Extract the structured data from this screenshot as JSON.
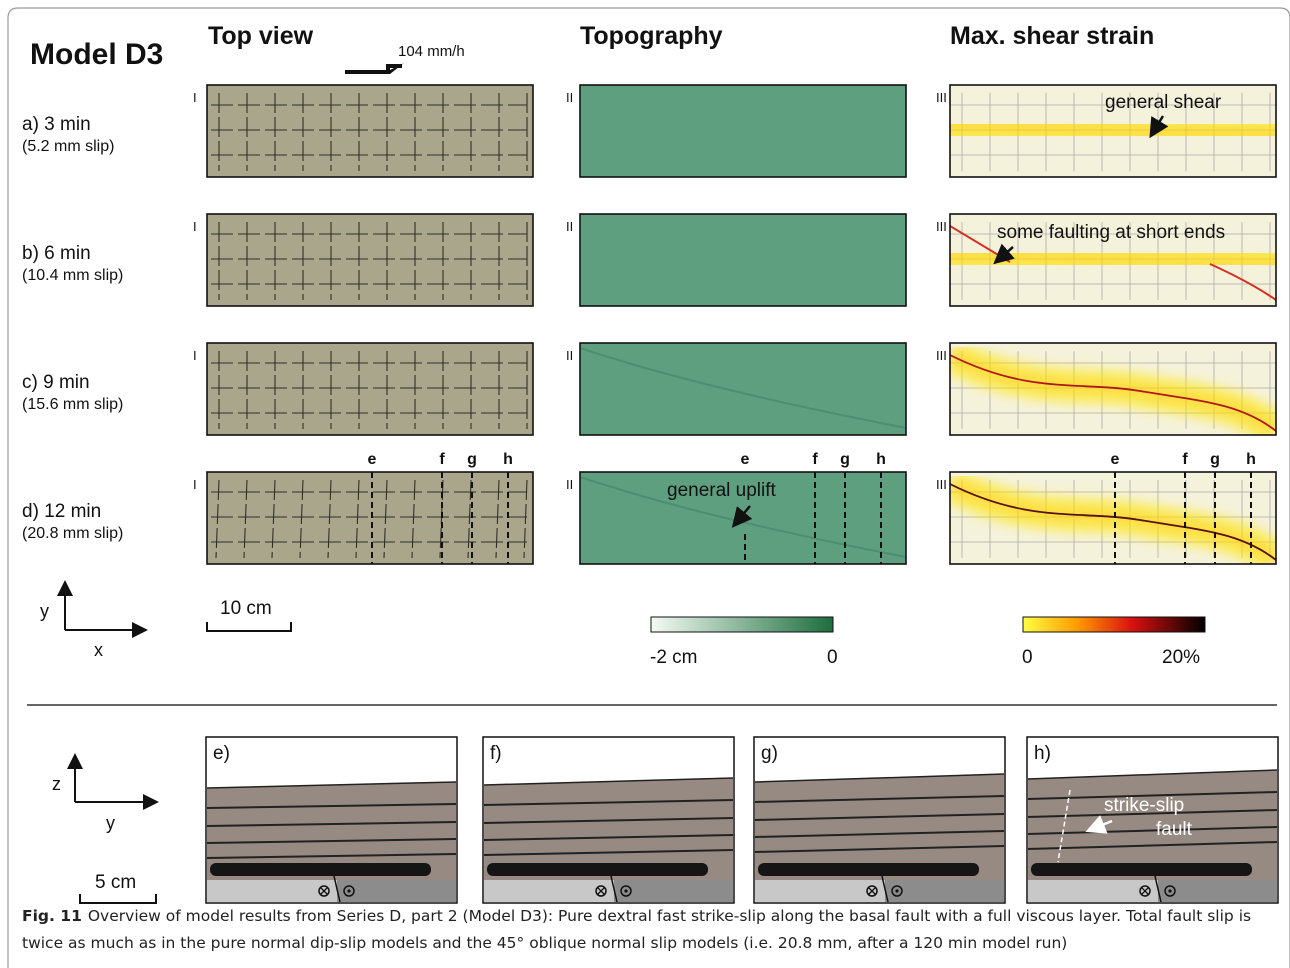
{
  "header": {
    "model": "Model D3",
    "columns": [
      "Top view",
      "Topography",
      "Max. shear strain"
    ],
    "velocity": "104 mm/h"
  },
  "rows": [
    {
      "time": "a) 3 min",
      "slip": "(5.2 mm slip)"
    },
    {
      "time": "b) 6 min",
      "slip": "(10.4 mm slip)"
    },
    {
      "time": "c) 9 min",
      "slip": "(15.6 mm slip)"
    },
    {
      "time": "d) 12 min",
      "slip": "(20.8 mm slip)"
    }
  ],
  "panel_labels": [
    "I",
    "II",
    "III"
  ],
  "annotations": {
    "general_shear": "general shear",
    "short_ends": "some faulting at short ends",
    "uplift": "general uplift",
    "fault": [
      "strike-slip",
      "fault"
    ]
  },
  "sections": [
    "e",
    "f",
    "g",
    "h"
  ],
  "axes_top": {
    "y": "y",
    "x": "x",
    "scale": "10 cm"
  },
  "colorbars": {
    "topography": [
      "-2 cm",
      "0"
    ],
    "strain": [
      "0",
      "20%"
    ]
  },
  "cross_sections": {
    "labels": [
      "e)",
      "f)",
      "g)",
      "h)"
    ],
    "z": "z",
    "y": "y",
    "scale": "5 cm"
  },
  "caption": {
    "label": "Fig. 11",
    "text": "Overview of model results from Series D, part 2 (Model D3): Pure dextral fast strike-slip along the basal fault with a full viscous layer. Total fault slip is twice as much as in the pure normal dip-slip models and the 45° oblique normal slip models (i.e. 20.8 mm, after a 120 min model run)"
  }
}
